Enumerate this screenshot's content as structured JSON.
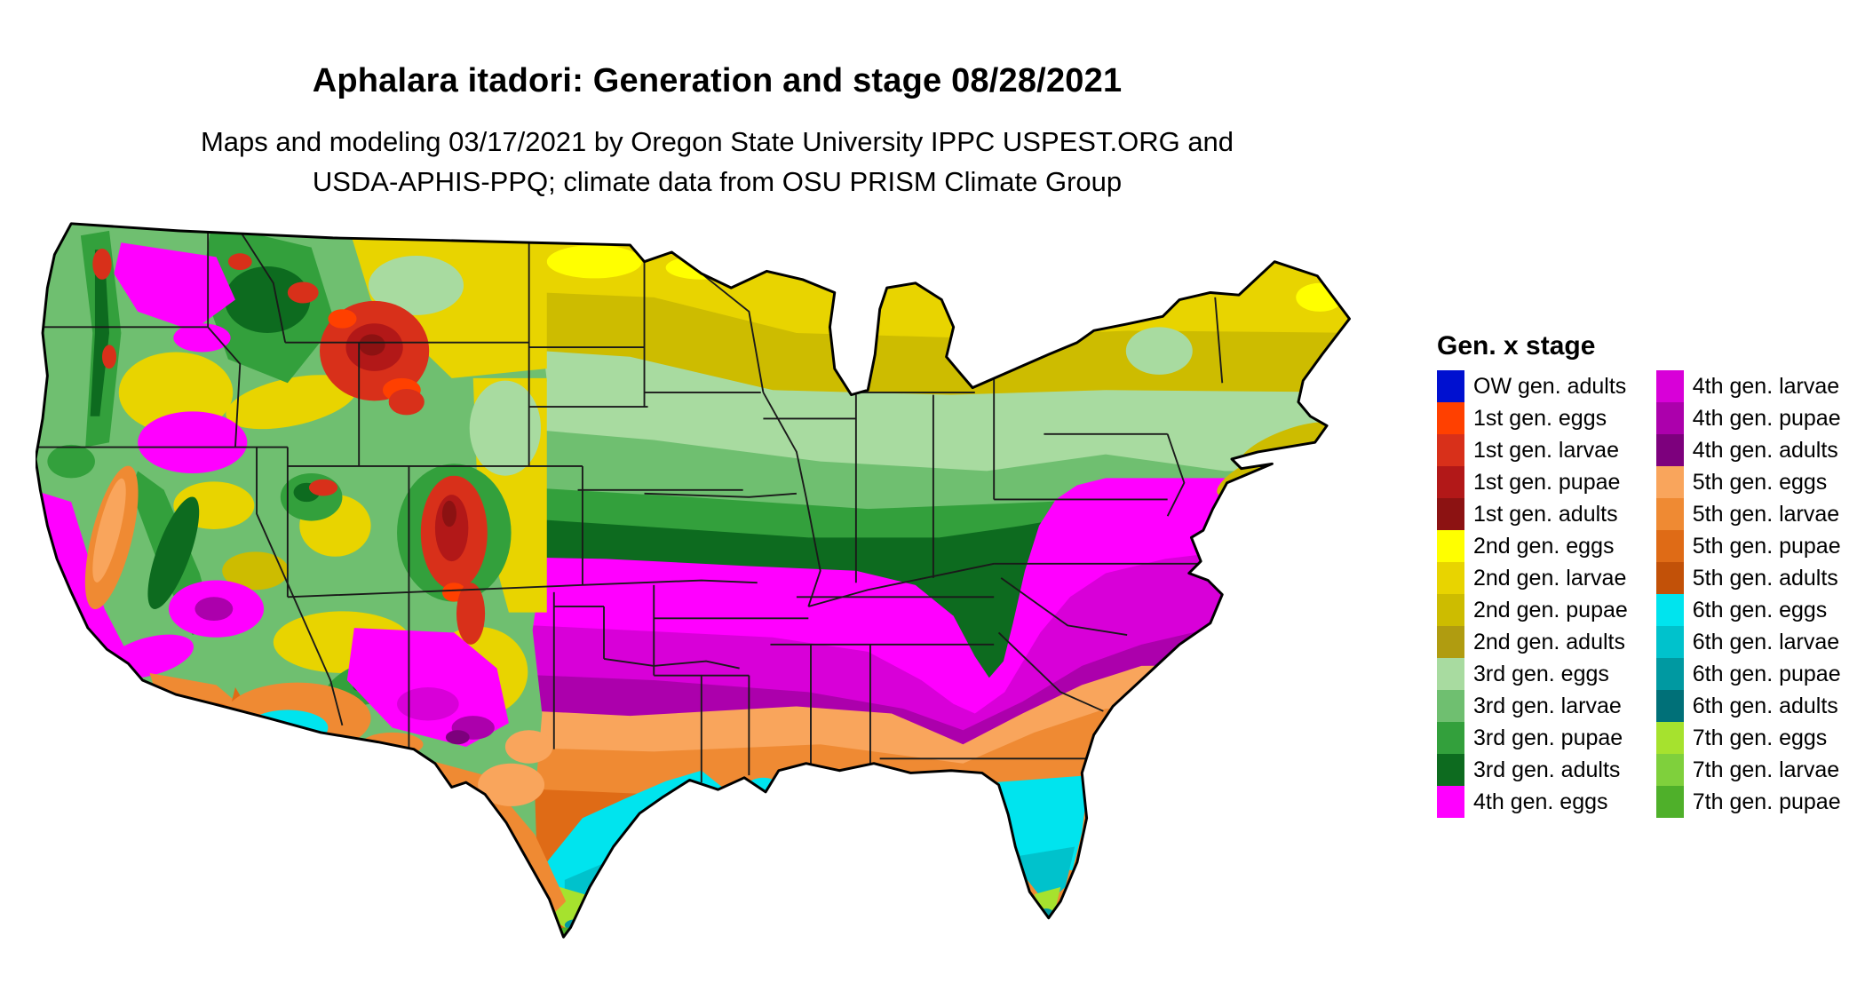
{
  "header": {
    "title": "Aphalara itadori: Generation and stage 08/28/2021",
    "subtitle_line1": "Maps and modeling 03/17/2021 by Oregon State University IPPC USPEST.ORG and",
    "subtitle_line2": "USDA-APHIS-PPQ; climate data from OSU PRISM Climate Group"
  },
  "legend": {
    "title": "Gen. x stage",
    "columns": [
      {
        "items": [
          {
            "label": "OW gen. adults",
            "color": "#0010d0"
          },
          {
            "label": "1st gen. eggs",
            "color": "#ff4000"
          },
          {
            "label": "1st gen. larvae",
            "color": "#d8301a"
          },
          {
            "label": "1st gen. pupae",
            "color": "#b21818"
          },
          {
            "label": "1st gen. adults",
            "color": "#8c1212"
          },
          {
            "label": "2nd gen. eggs",
            "color": "#ffff00"
          },
          {
            "label": "2nd gen. larvae",
            "color": "#e8d400"
          },
          {
            "label": "2nd gen. pupae",
            "color": "#cdbc00"
          },
          {
            "label": "2nd gen. adults",
            "color": "#b09c10"
          },
          {
            "label": "3rd gen. eggs",
            "color": "#a8dba0"
          },
          {
            "label": "3rd gen. larvae",
            "color": "#6fbf70"
          },
          {
            "label": "3rd gen. pupae",
            "color": "#33a03c"
          },
          {
            "label": "3rd gen. adults",
            "color": "#0d6b1f"
          },
          {
            "label": "4th gen. eggs",
            "color": "#ff00ff"
          }
        ]
      },
      {
        "items": [
          {
            "label": "4th gen. larvae",
            "color": "#d800d8"
          },
          {
            "label": "4th gen. pupae",
            "color": "#ac00ac"
          },
          {
            "label": "4th gen. adults",
            "color": "#7d007d"
          },
          {
            "label": "5th gen. eggs",
            "color": "#f9a55c"
          },
          {
            "label": "5th gen. larvae",
            "color": "#ef8a33"
          },
          {
            "label": "5th gen. pupae",
            "color": "#df6b16"
          },
          {
            "label": "5th gen. adults",
            "color": "#c25108"
          },
          {
            "label": "6th gen. eggs",
            "color": "#00e4ee"
          },
          {
            "label": "6th gen. larvae",
            "color": "#00c2cc"
          },
          {
            "label": "6th gen. pupae",
            "color": "#0099a1"
          },
          {
            "label": "6th gen. adults",
            "color": "#007078"
          },
          {
            "label": "7th gen. eggs",
            "color": "#a6e22e"
          },
          {
            "label": "7th gen. larvae",
            "color": "#7fd03c"
          },
          {
            "label": "7th gen. pupae",
            "color": "#4fb02a"
          }
        ]
      }
    ]
  },
  "map": {
    "background": "#ffffff",
    "outline_color": "#000000",
    "state_border_color": "#1a1a1a"
  }
}
